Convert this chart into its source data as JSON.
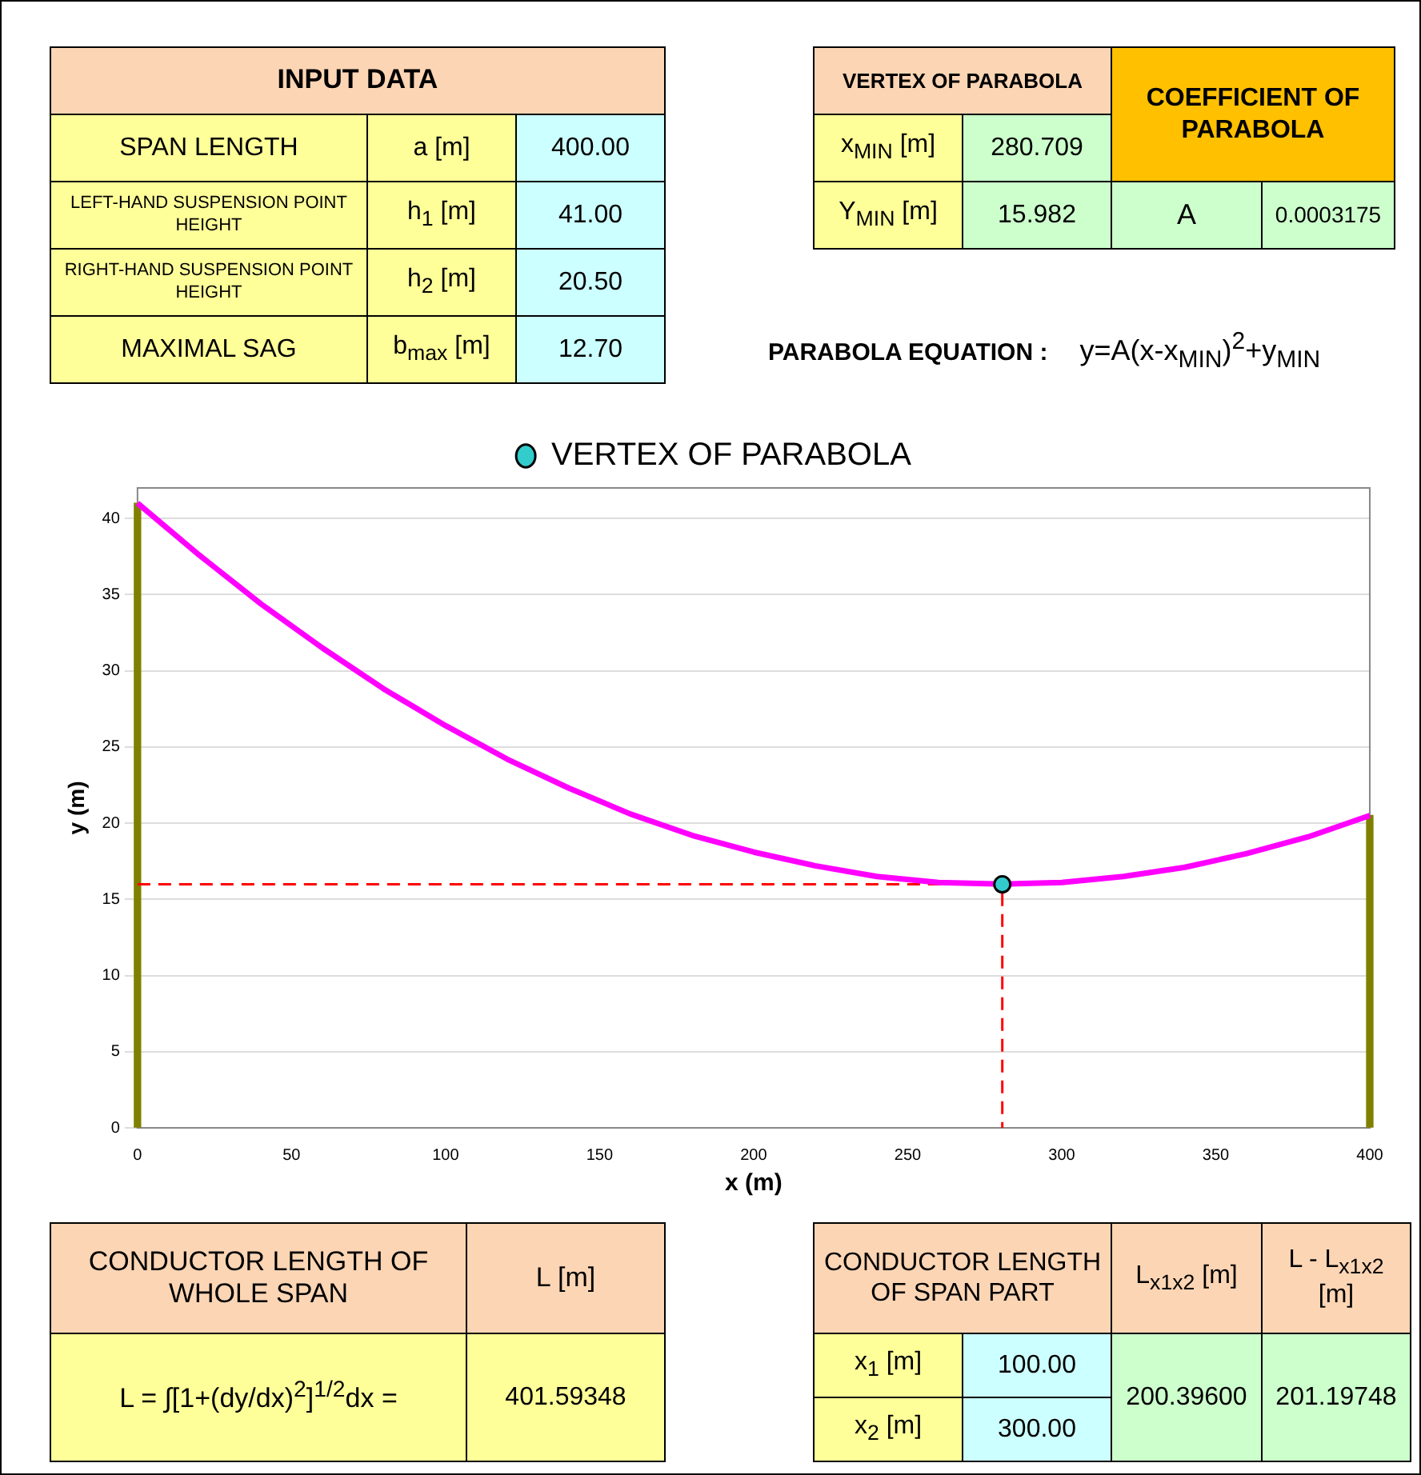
{
  "chart_data": [
    {
      "type": "other",
      "title": "INPUT DATA",
      "annotations": [
        "SPAN LENGTH",
        "a [m]",
        "400.00",
        "LEFT-HAND SUSPENSION POINT HEIGHT",
        "h$_{1}$ [m]",
        "41.00",
        "RIGHT-HAND SUSPENSION POINT HEIGHT",
        "h$_{2}$ [m]",
        "20.50",
        "MAXIMAL SAG",
        "b$_{max}$ [m]",
        "12.70"
      ]
    },
    {
      "type": "other",
      "annotations": [
        "VERTEX OF PARABOLA",
        "COEFFICIENT OF PARABOLA",
        "x$_{MIN}$ [m]",
        "280.709",
        "Y$_{MIN}$ [m]",
        "15.982",
        "A",
        "0.0003175",
        "PARABOLA EQUATION :",
        "y=A(x-x$_{MIN}$)$^{2}$+y$_{MIN}$"
      ]
    },
    {
      "type": "line",
      "xlabel": "x (m)",
      "ylabel": "y (m)",
      "xlim": [
        0,
        400
      ],
      "xticks": [
        0,
        50,
        100,
        150,
        200,
        250,
        300,
        350,
        400
      ],
      "ylim": [
        0,
        42
      ],
      "yticks": [
        0,
        5,
        10,
        15,
        20,
        25,
        30,
        35,
        40
      ],
      "grid": "y",
      "legend": "top",
      "marker": "none",
      "series": [
        {
          "type": "line",
          "color": "#ff00ff",
          "x": [
            0,
            20,
            40,
            60,
            80,
            100,
            120,
            140,
            160,
            180,
            200,
            220,
            240,
            260,
            280.709,
            300,
            320,
            340,
            360,
            380,
            400
          ],
          "values": [
            41.0,
            37.6,
            34.4,
            31.5,
            28.8,
            26.4,
            24.2,
            22.3,
            20.6,
            19.2,
            18.1,
            17.2,
            16.5,
            16.1,
            16.0,
            16.1,
            16.5,
            17.1,
            18.0,
            19.1,
            20.5
          ]
        },
        {
          "type": "line",
          "color": "#ff0000",
          "line_style": "dashed",
          "x": [
            0,
            280.709,
            280.709
          ],
          "values": [
            15.982,
            15.982,
            0
          ]
        },
        {
          "type": "bar",
          "color": "#808000",
          "x": [
            0,
            400
          ],
          "values": [
            41,
            20.5
          ]
        },
        {
          "type": "scatter",
          "name": "VERTEX OF PARABOLA",
          "color": "#33cccc",
          "marker": "circle",
          "x": [
            280.709
          ],
          "values": [
            15.982
          ]
        }
      ]
    },
    {
      "type": "other",
      "annotations": [
        "CONDUCTOR LENGTH OF WHOLE SPAN",
        "L [m]",
        "L = ∫[1+(dy/dx)$^{2}$]$^{1/2}$dx =",
        "401.59348"
      ]
    },
    {
      "type": "other",
      "annotations": [
        "CONDUCTOR LENGTH OF SPAN PART",
        "L$_{x1x2}$ [m]",
        "L - L$_{x1x2}$ [m]",
        "x$_{1}$ [m]",
        "100.00",
        "200.39600",
        "201.19748",
        "x$_{2}$ [m]",
        "300.00"
      ]
    }
  ]
}
